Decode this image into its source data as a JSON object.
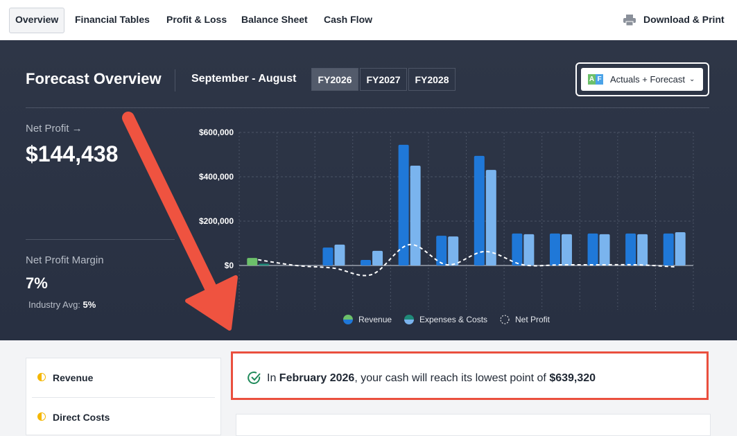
{
  "nav": {
    "tabs": [
      "Overview",
      "Financial Tables",
      "Profit & Loss",
      "Balance Sheet",
      "Cash Flow"
    ],
    "action": "Download & Print"
  },
  "header": {
    "title": "Forecast Overview",
    "period": "September - August",
    "years": [
      "FY2026",
      "FY2027",
      "FY2028"
    ],
    "view_badge": [
      "A",
      "F"
    ],
    "view": "Actuals + Forecast"
  },
  "kpis": {
    "net_profit": {
      "label": "Net Profit →",
      "value": "$144,438"
    },
    "margin": {
      "label": "Net Profit Margin",
      "value": "7%",
      "benchmark_label": "Industry Avg:",
      "benchmark_value": "5%"
    }
  },
  "chart_data": {
    "type": "bar",
    "categories": [
      null,
      null,
      null,
      null,
      null,
      null,
      null,
      null,
      null,
      null,
      null,
      null
    ],
    "actuals": 1,
    "series": [
      {
        "name": "Revenue",
        "color": "#1f78d8",
        "actual_color": "#6cc06a",
        "values": [
          34000,
          0,
          81000,
          25000,
          544000,
          134000,
          494000,
          144000,
          144000,
          144000,
          144000,
          144000
        ]
      },
      {
        "name": "Expenses & Costs",
        "color": "#7ab4ee",
        "actual_color": "#1f8a78",
        "values": [
          8000,
          0,
          94000,
          66000,
          450000,
          131000,
          431000,
          141000,
          141000,
          141000,
          141000,
          150000
        ]
      },
      {
        "name": "Net Profit",
        "type": "line",
        "color": "#ffffff",
        "dashed": true,
        "values": [
          26000,
          0,
          -12000,
          -41000,
          94000,
          3000,
          63000,
          3000,
          3000,
          3000,
          3000,
          -6000
        ]
      }
    ],
    "ylim": [
      -200000,
      600000
    ],
    "yticks": [
      {
        "value": 0,
        "label": "$0"
      },
      {
        "value": 200000,
        "label": "$200,000"
      },
      {
        "value": 400000,
        "label": "$400,000"
      },
      {
        "value": 600000,
        "label": "$600,000"
      }
    ],
    "grid": true
  },
  "callout": {
    "parts": [
      "In ",
      "February 2026",
      ", your cash will reach its lowest point of ",
      "$639,320"
    ]
  },
  "sidebar": {
    "items": [
      "Revenue",
      "Direct Costs"
    ]
  }
}
